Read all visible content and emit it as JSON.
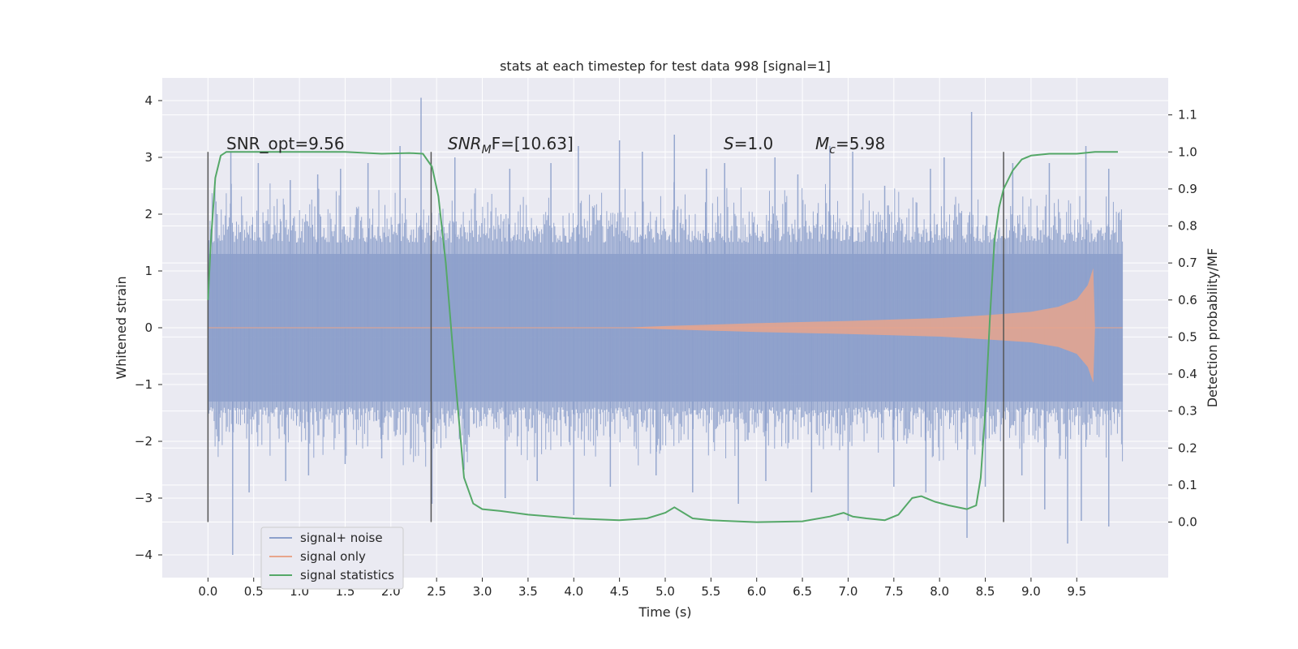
{
  "chart_data": {
    "type": "line",
    "title": "stats at each timestep for test data 998 [signal=1]",
    "xlabel": "Time (s)",
    "ylabel_left": "Whitened strain",
    "ylabel_right": "Detection probability/MF",
    "xlim": [
      -0.5,
      10.5
    ],
    "ylim_left": [
      -4.4,
      4.4
    ],
    "ylim_right": [
      -0.15,
      1.2
    ],
    "xticks": [
      "0.0",
      "0.5",
      "1.0",
      "1.5",
      "2.0",
      "2.5",
      "3.0",
      "3.5",
      "4.0",
      "4.5",
      "5.0",
      "5.5",
      "6.0",
      "6.5",
      "7.0",
      "7.5",
      "8.0",
      "8.5",
      "9.0",
      "9.5"
    ],
    "yticks_left": [
      "4",
      "3",
      "2",
      "1",
      "0",
      "−1",
      "−2",
      "−3",
      "−4"
    ],
    "yticks_right": [
      "0.0",
      "0.1",
      "0.2",
      "0.3",
      "0.4",
      "0.5",
      "0.6",
      "0.7",
      "0.8",
      "0.9",
      "1.0",
      "1.1"
    ],
    "grid": true,
    "legend_position": "lower-left",
    "colors": {
      "background": "#eaeaf2",
      "grid": "#ffffff",
      "signal_noise": "#8da0cb",
      "signal_only": "#e8a58c",
      "statistics": "#55a868",
      "vline": "#555555"
    },
    "annotations": {
      "snr_opt": "SNR_opt=9.56",
      "snr_mf_label": "SNR",
      "snr_mf_sub": "M",
      "snr_mf_rest": "F=[10.63]",
      "s_label": "S",
      "s_value": "=1.0",
      "mc_label": "M",
      "mc_sub": "c",
      "mc_value": "=5.98"
    },
    "vertical_lines_x": [
      0.0,
      2.44,
      8.7
    ],
    "series": [
      {
        "name": "signal+ noise",
        "kind": "noise",
        "x_range": [
          0.0,
          10.0
        ],
        "envelope_upper": 1.3,
        "envelope_lower": -1.3,
        "peaks": [
          [
            0.1,
            2.0
          ],
          [
            0.25,
            3.1
          ],
          [
            0.55,
            2.9
          ],
          [
            0.9,
            2.6
          ],
          [
            1.2,
            2.7
          ],
          [
            1.45,
            2.8
          ],
          [
            1.75,
            2.9
          ],
          [
            2.1,
            3.2
          ],
          [
            2.33,
            4.05
          ],
          [
            2.7,
            3.0
          ],
          [
            3.3,
            2.8
          ],
          [
            3.75,
            2.9
          ],
          [
            4.05,
            3.2
          ],
          [
            4.5,
            3.3
          ],
          [
            4.75,
            3.1
          ],
          [
            5.1,
            3.4
          ],
          [
            5.45,
            2.8
          ],
          [
            5.65,
            2.9
          ],
          [
            6.2,
            3.0
          ],
          [
            6.45,
            2.7
          ],
          [
            6.8,
            3.2
          ],
          [
            7.05,
            3.1
          ],
          [
            7.4,
            2.5
          ],
          [
            7.9,
            2.8
          ],
          [
            8.05,
            3.0
          ],
          [
            8.35,
            3.8
          ],
          [
            8.8,
            2.9
          ],
          [
            9.2,
            2.9
          ],
          [
            9.6,
            3.2
          ],
          [
            9.85,
            2.8
          ]
        ],
        "troughs": [
          [
            0.12,
            -2.0
          ],
          [
            0.27,
            -4.0
          ],
          [
            0.45,
            -2.9
          ],
          [
            0.85,
            -2.7
          ],
          [
            1.1,
            -2.6
          ],
          [
            1.5,
            -2.4
          ],
          [
            1.9,
            -2.3
          ],
          [
            2.45,
            -3.1
          ],
          [
            2.8,
            -2.5
          ],
          [
            3.25,
            -3.0
          ],
          [
            3.6,
            -2.7
          ],
          [
            4.0,
            -3.3
          ],
          [
            4.4,
            -2.8
          ],
          [
            4.9,
            -2.6
          ],
          [
            5.3,
            -2.9
          ],
          [
            5.8,
            -3.1
          ],
          [
            6.1,
            -2.7
          ],
          [
            6.6,
            -2.9
          ],
          [
            7.0,
            -3.4
          ],
          [
            7.5,
            -2.8
          ],
          [
            7.85,
            -2.9
          ],
          [
            8.3,
            -3.7
          ],
          [
            8.5,
            -2.8
          ],
          [
            8.9,
            -2.6
          ],
          [
            9.15,
            -3.2
          ],
          [
            9.4,
            -3.8
          ],
          [
            9.55,
            -3.4
          ],
          [
            9.85,
            -3.5
          ]
        ]
      },
      {
        "name": "signal only",
        "kind": "chirp",
        "envelope": [
          [
            0.0,
            0.0
          ],
          [
            4.5,
            0.0
          ],
          [
            5.0,
            0.03
          ],
          [
            6.0,
            0.08
          ],
          [
            7.0,
            0.12
          ],
          [
            8.0,
            0.17
          ],
          [
            8.5,
            0.22
          ],
          [
            9.0,
            0.28
          ],
          [
            9.3,
            0.37
          ],
          [
            9.5,
            0.5
          ],
          [
            9.62,
            0.75
          ],
          [
            9.68,
            1.05
          ],
          [
            9.7,
            0.0
          ],
          [
            10.0,
            0.0
          ]
        ]
      },
      {
        "name": "signal statistics",
        "kind": "line",
        "axis": "right",
        "x": [
          0.0,
          0.03,
          0.08,
          0.14,
          0.2,
          0.3,
          0.5,
          1.0,
          1.5,
          1.9,
          2.2,
          2.35,
          2.45,
          2.52,
          2.6,
          2.7,
          2.8,
          2.9,
          3.0,
          3.2,
          3.5,
          4.0,
          4.5,
          4.8,
          5.0,
          5.1,
          5.2,
          5.3,
          5.5,
          6.0,
          6.5,
          6.8,
          6.95,
          7.05,
          7.2,
          7.4,
          7.55,
          7.7,
          7.8,
          7.95,
          8.1,
          8.3,
          8.4,
          8.45,
          8.5,
          8.55,
          8.6,
          8.65,
          8.7,
          8.8,
          8.9,
          9.0,
          9.2,
          9.5,
          9.7,
          9.95
        ],
        "y": [
          0.6,
          0.75,
          0.93,
          0.99,
          1.0,
          1.0,
          1.0,
          1.0,
          1.0,
          0.995,
          0.997,
          0.995,
          0.96,
          0.88,
          0.7,
          0.4,
          0.12,
          0.05,
          0.035,
          0.03,
          0.02,
          0.01,
          0.005,
          0.01,
          0.025,
          0.04,
          0.025,
          0.01,
          0.005,
          0.0,
          0.002,
          0.015,
          0.025,
          0.015,
          0.01,
          0.005,
          0.02,
          0.065,
          0.07,
          0.055,
          0.045,
          0.035,
          0.045,
          0.12,
          0.3,
          0.55,
          0.76,
          0.85,
          0.9,
          0.95,
          0.98,
          0.99,
          0.995,
          0.995,
          1.0,
          1.0
        ]
      }
    ]
  }
}
